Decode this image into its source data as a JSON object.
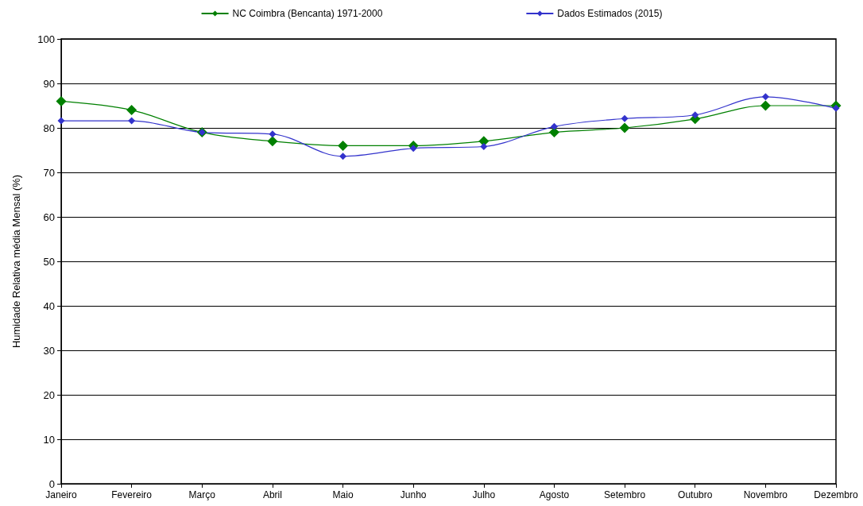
{
  "chart_data": {
    "type": "line",
    "ylabel": "Humidade Relativa média Mensal (%)",
    "categories": [
      "Janeiro",
      "Fevereiro",
      "Março",
      "Abril",
      "Maio",
      "Junho",
      "Julho",
      "Agosto",
      "Setembro",
      "Outubro",
      "Novembro",
      "Dezembro"
    ],
    "series": [
      {
        "name": "NC Coimbra (Bencanta) 1971-2000",
        "color": "#008000",
        "values": [
          86,
          84,
          79,
          77,
          76,
          76,
          77,
          79,
          80,
          82,
          85,
          85
        ]
      },
      {
        "name": "Dados Estimados (2015)",
        "color": "#3333cc",
        "values": [
          81.6,
          81.6,
          79,
          78.6,
          73.6,
          75.4,
          75.8,
          80.3,
          82.1,
          82.9,
          87,
          84.4
        ]
      }
    ],
    "ylim": [
      0,
      100
    ],
    "yticks": [
      0,
      10,
      20,
      30,
      40,
      50,
      60,
      70,
      80,
      90,
      100
    ],
    "grid": "y",
    "legend": "top",
    "marker": "diamond",
    "line_style": "solid"
  }
}
